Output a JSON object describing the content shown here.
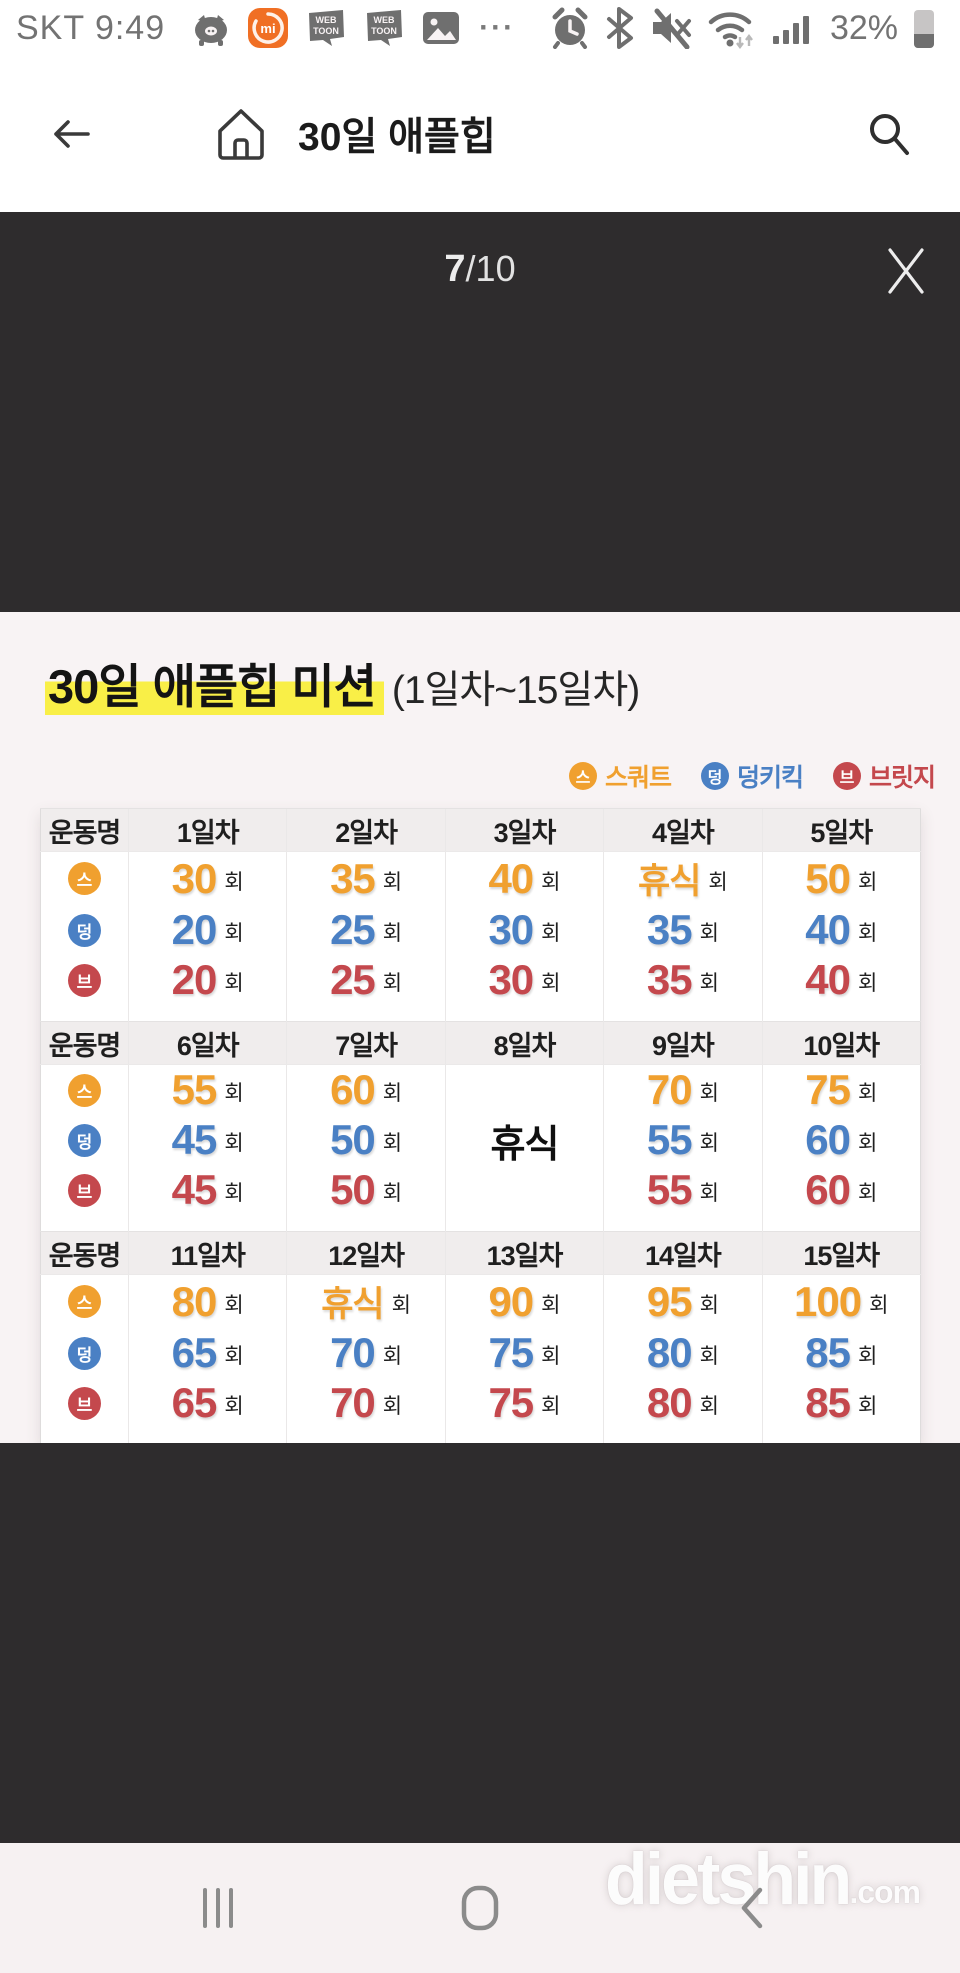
{
  "status_bar": {
    "carrier_time": "SKT 9:49",
    "battery_percent": "32%",
    "more_dots": "···"
  },
  "app_header": {
    "title": "30일 애플힙"
  },
  "viewer": {
    "page_current": "7",
    "page_total": "/10"
  },
  "content": {
    "title_highlight": "30일 애플힙 미션",
    "title_suffix": "(1일차~15일차)",
    "legend": [
      {
        "abbr": "스",
        "label": "스쿼트",
        "color": "#f0a02f"
      },
      {
        "abbr": "덩",
        "label": "덩키킥",
        "color": "#4a80c4"
      },
      {
        "abbr": "브",
        "label": "브릿지",
        "color": "#c4484d"
      }
    ],
    "table": {
      "exercise_col_header": "운동명",
      "unit": "회",
      "sections": [
        {
          "days": [
            "1일차",
            "2일차",
            "3일차",
            "4일차",
            "5일차"
          ],
          "rows": [
            {
              "icon": "스",
              "color": "#f0a02f",
              "cells": [
                {
                  "t": "num",
                  "v": "30"
                },
                {
                  "t": "num",
                  "v": "35"
                },
                {
                  "t": "num",
                  "v": "40"
                },
                {
                  "t": "rest",
                  "v": "휴식"
                },
                {
                  "t": "num",
                  "v": "50"
                }
              ]
            },
            {
              "icon": "덩",
              "color": "#4a80c4",
              "cells": [
                {
                  "t": "num",
                  "v": "20"
                },
                {
                  "t": "num",
                  "v": "25"
                },
                {
                  "t": "num",
                  "v": "30"
                },
                {
                  "t": "num",
                  "v": "35"
                },
                {
                  "t": "num",
                  "v": "40"
                }
              ]
            },
            {
              "icon": "브",
              "color": "#c4484d",
              "cells": [
                {
                  "t": "num",
                  "v": "20"
                },
                {
                  "t": "num",
                  "v": "25"
                },
                {
                  "t": "num",
                  "v": "30"
                },
                {
                  "t": "num",
                  "v": "35"
                },
                {
                  "t": "num",
                  "v": "40"
                }
              ]
            }
          ]
        },
        {
          "days": [
            "6일차",
            "7일차",
            "8일차",
            "9일차",
            "10일차"
          ],
          "rows": [
            {
              "icon": "스",
              "color": "#f0a02f",
              "cells": [
                {
                  "t": "num",
                  "v": "55"
                },
                {
                  "t": "num",
                  "v": "60"
                },
                {
                  "t": "bigrest",
                  "v": "휴식"
                },
                {
                  "t": "num",
                  "v": "70"
                },
                {
                  "t": "num",
                  "v": "75"
                }
              ]
            },
            {
              "icon": "덩",
              "color": "#4a80c4",
              "cells": [
                {
                  "t": "num",
                  "v": "45"
                },
                {
                  "t": "num",
                  "v": "50"
                },
                {
                  "t": "skip",
                  "v": ""
                },
                {
                  "t": "num",
                  "v": "55"
                },
                {
                  "t": "num",
                  "v": "60"
                }
              ]
            },
            {
              "icon": "브",
              "color": "#c4484d",
              "cells": [
                {
                  "t": "num",
                  "v": "45"
                },
                {
                  "t": "num",
                  "v": "50"
                },
                {
                  "t": "skip",
                  "v": ""
                },
                {
                  "t": "num",
                  "v": "55"
                },
                {
                  "t": "num",
                  "v": "60"
                }
              ]
            }
          ]
        },
        {
          "days": [
            "11일차",
            "12일차",
            "13일차",
            "14일차",
            "15일차"
          ],
          "rows": [
            {
              "icon": "스",
              "color": "#f0a02f",
              "cells": [
                {
                  "t": "num",
                  "v": "80"
                },
                {
                  "t": "rest",
                  "v": "휴식"
                },
                {
                  "t": "num",
                  "v": "90"
                },
                {
                  "t": "num",
                  "v": "95"
                },
                {
                  "t": "num",
                  "v": "100"
                }
              ]
            },
            {
              "icon": "덩",
              "color": "#4a80c4",
              "cells": [
                {
                  "t": "num",
                  "v": "65"
                },
                {
                  "t": "num",
                  "v": "70"
                },
                {
                  "t": "num",
                  "v": "75"
                },
                {
                  "t": "num",
                  "v": "80"
                },
                {
                  "t": "num",
                  "v": "85"
                }
              ]
            },
            {
              "icon": "브",
              "color": "#c4484d",
              "cells": [
                {
                  "t": "num",
                  "v": "65"
                },
                {
                  "t": "num",
                  "v": "70"
                },
                {
                  "t": "num",
                  "v": "75"
                },
                {
                  "t": "num",
                  "v": "80"
                },
                {
                  "t": "num",
                  "v": "85"
                }
              ]
            }
          ]
        }
      ]
    }
  },
  "watermark": {
    "main": "dietshin",
    "suffix": ".com"
  }
}
